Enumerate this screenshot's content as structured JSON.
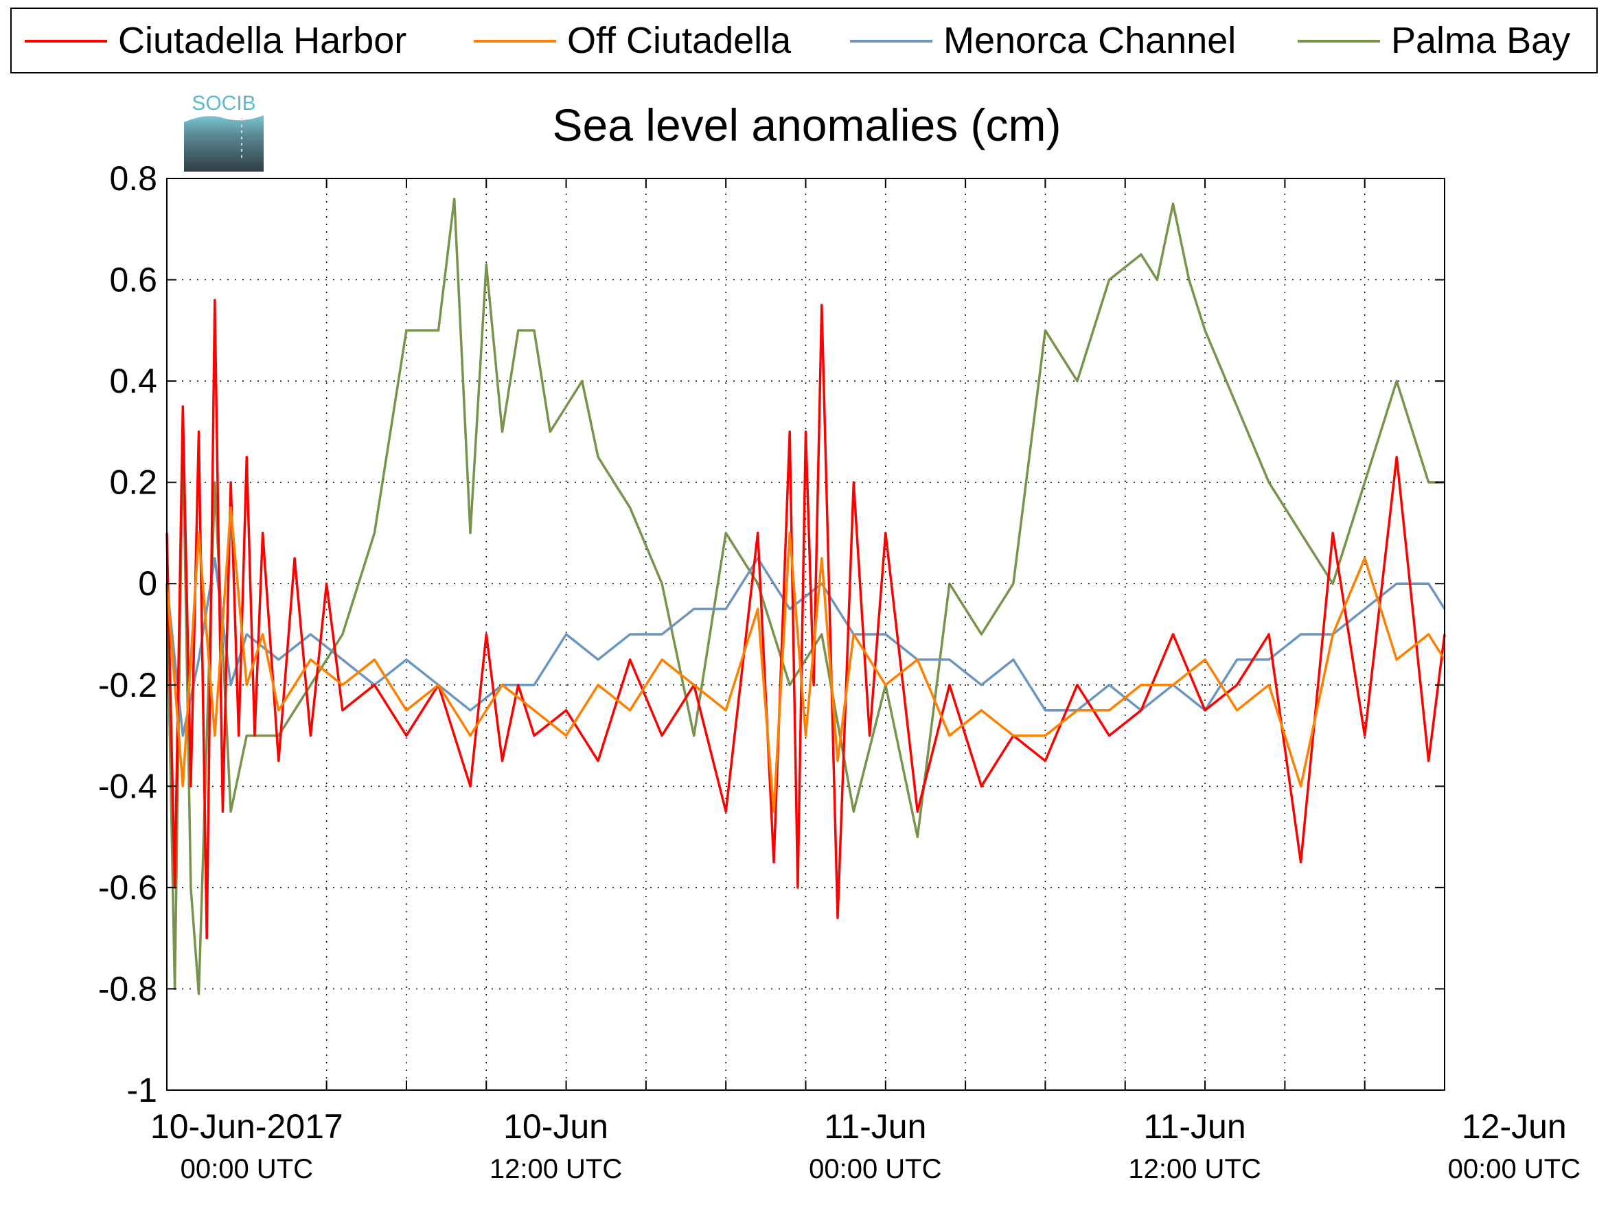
{
  "chart_data": {
    "type": "line",
    "title": "Sea level anomalies (cm)",
    "logo_text": "SOCIB",
    "xlabel": "",
    "ylabel": "",
    "ylim": [
      -1,
      0.8
    ],
    "yticks": [
      0.8,
      0.6,
      0.4,
      0.2,
      0,
      -0.2,
      -0.4,
      -0.6,
      -0.8,
      -1
    ],
    "ytick_labels": [
      "0.8",
      "0.6",
      "0.4",
      "0.2",
      "0",
      "-0.2",
      "-0.4",
      "-0.6",
      "-0.8",
      "-1"
    ],
    "xlim_hours": [
      -5,
      75
    ],
    "x_minor_ticks_hours": [
      5,
      10,
      15,
      20,
      25,
      30,
      35,
      40,
      45,
      50,
      55,
      60,
      65,
      70
    ],
    "x_tick_labels": [
      {
        "hour": 0,
        "line1": "10-Jun-2017",
        "line2": "00:00 UTC"
      },
      {
        "hour": 20,
        "line1": "10-Jun",
        "line2": "12:00 UTC"
      },
      {
        "hour": 40,
        "line1": "11-Jun",
        "line2": "00:00 UTC"
      },
      {
        "hour": 60,
        "line1": "11-Jun",
        "line2": "12:00 UTC"
      },
      {
        "hour": 80,
        "line1": "12-Jun",
        "line2": "00:00 UTC"
      }
    ],
    "grid": true,
    "legend_position": "top",
    "series": [
      {
        "name": "Ciutadella Harbor",
        "color": "#ff0000",
        "x": [
          -5,
          -4.5,
          -4,
          -3.5,
          -3,
          -2.5,
          -2,
          -1.5,
          -1,
          -0.5,
          0,
          0.5,
          1,
          2,
          3,
          4,
          5,
          6,
          8,
          10,
          12,
          14,
          15,
          16,
          17,
          18,
          20,
          22,
          24,
          26,
          28,
          30,
          32,
          33,
          34,
          34.5,
          35,
          35.5,
          36,
          37,
          38,
          39,
          40,
          42,
          44,
          46,
          48,
          50,
          52,
          54,
          56,
          58,
          60,
          62,
          64,
          66,
          68,
          70,
          72,
          74,
          75
        ],
        "y": [
          0.1,
          -0.6,
          0.35,
          -0.4,
          0.3,
          -0.7,
          0.56,
          -0.45,
          0.2,
          -0.3,
          0.25,
          -0.3,
          0.1,
          -0.35,
          0.05,
          -0.3,
          0.0,
          -0.25,
          -0.2,
          -0.3,
          -0.2,
          -0.4,
          -0.1,
          -0.35,
          -0.2,
          -0.3,
          -0.25,
          -0.35,
          -0.15,
          -0.3,
          -0.2,
          -0.45,
          0.1,
          -0.55,
          0.3,
          -0.6,
          0.3,
          -0.2,
          0.55,
          -0.66,
          0.2,
          -0.3,
          0.1,
          -0.45,
          -0.2,
          -0.4,
          -0.3,
          -0.35,
          -0.2,
          -0.3,
          -0.25,
          -0.1,
          -0.25,
          -0.2,
          -0.1,
          -0.55,
          0.1,
          -0.3,
          0.25,
          -0.35,
          -0.1
        ]
      },
      {
        "name": "Off Ciutadella",
        "color": "#ff8000",
        "x": [
          -5,
          -4,
          -3,
          -2,
          -1,
          0,
          1,
          2,
          4,
          6,
          8,
          10,
          12,
          14,
          16,
          18,
          20,
          22,
          24,
          26,
          28,
          30,
          32,
          33,
          34,
          35,
          36,
          37,
          38,
          40,
          42,
          44,
          46,
          48,
          50,
          52,
          54,
          56,
          58,
          60,
          62,
          64,
          66,
          68,
          70,
          72,
          74,
          75
        ],
        "y": [
          0.0,
          -0.4,
          0.1,
          -0.3,
          0.15,
          -0.2,
          -0.1,
          -0.25,
          -0.15,
          -0.2,
          -0.15,
          -0.25,
          -0.2,
          -0.3,
          -0.2,
          -0.25,
          -0.3,
          -0.2,
          -0.25,
          -0.15,
          -0.2,
          -0.25,
          -0.05,
          -0.45,
          0.1,
          -0.3,
          0.05,
          -0.35,
          -0.1,
          -0.2,
          -0.15,
          -0.3,
          -0.25,
          -0.3,
          -0.3,
          -0.25,
          -0.25,
          -0.2,
          -0.2,
          -0.15,
          -0.25,
          -0.2,
          -0.4,
          -0.1,
          0.05,
          -0.15,
          -0.1,
          -0.15
        ]
      },
      {
        "name": "Menorca Channel",
        "color": "#6b96c0",
        "x": [
          -5,
          -4,
          -3,
          -2,
          -1,
          0,
          2,
          4,
          6,
          8,
          10,
          12,
          14,
          16,
          18,
          20,
          22,
          24,
          26,
          28,
          30,
          32,
          34,
          36,
          38,
          40,
          42,
          44,
          46,
          48,
          50,
          52,
          54,
          56,
          58,
          60,
          62,
          64,
          66,
          68,
          70,
          72,
          74,
          75
        ],
        "y": [
          0.0,
          -0.3,
          -0.15,
          0.05,
          -0.2,
          -0.1,
          -0.15,
          -0.1,
          -0.15,
          -0.2,
          -0.15,
          -0.2,
          -0.25,
          -0.2,
          -0.2,
          -0.1,
          -0.15,
          -0.1,
          -0.1,
          -0.05,
          -0.05,
          0.05,
          -0.05,
          0.0,
          -0.1,
          -0.1,
          -0.15,
          -0.15,
          -0.2,
          -0.15,
          -0.25,
          -0.25,
          -0.2,
          -0.25,
          -0.2,
          -0.25,
          -0.15,
          -0.15,
          -0.1,
          -0.1,
          -0.05,
          0.0,
          0.0,
          -0.05
        ]
      },
      {
        "name": "Palma Bay",
        "color": "#77934c",
        "x": [
          -5,
          -4.5,
          -4,
          -3.5,
          -3,
          -2,
          -1,
          0,
          2,
          4,
          6,
          8,
          10,
          12,
          13,
          14,
          15,
          16,
          17,
          18,
          19,
          20,
          21,
          22,
          24,
          26,
          28,
          30,
          32,
          34,
          36,
          38,
          40,
          42,
          44,
          46,
          48,
          50,
          52,
          54,
          56,
          57,
          58,
          59,
          60,
          62,
          64,
          66,
          68,
          70,
          72,
          74,
          75
        ],
        "y": [
          0.0,
          -0.8,
          0.3,
          -0.6,
          -0.81,
          0.2,
          -0.45,
          -0.3,
          -0.3,
          -0.2,
          -0.1,
          0.1,
          0.5,
          0.5,
          0.76,
          0.1,
          0.63,
          0.3,
          0.5,
          0.5,
          0.3,
          0.35,
          0.4,
          0.25,
          0.15,
          0.0,
          -0.3,
          0.1,
          0.0,
          -0.2,
          -0.1,
          -0.45,
          -0.2,
          -0.5,
          0.0,
          -0.1,
          0.0,
          0.5,
          0.4,
          0.6,
          0.65,
          0.6,
          0.75,
          0.6,
          0.5,
          0.35,
          0.2,
          0.1,
          0.0,
          0.2,
          0.4,
          0.2,
          0.2
        ]
      }
    ]
  }
}
